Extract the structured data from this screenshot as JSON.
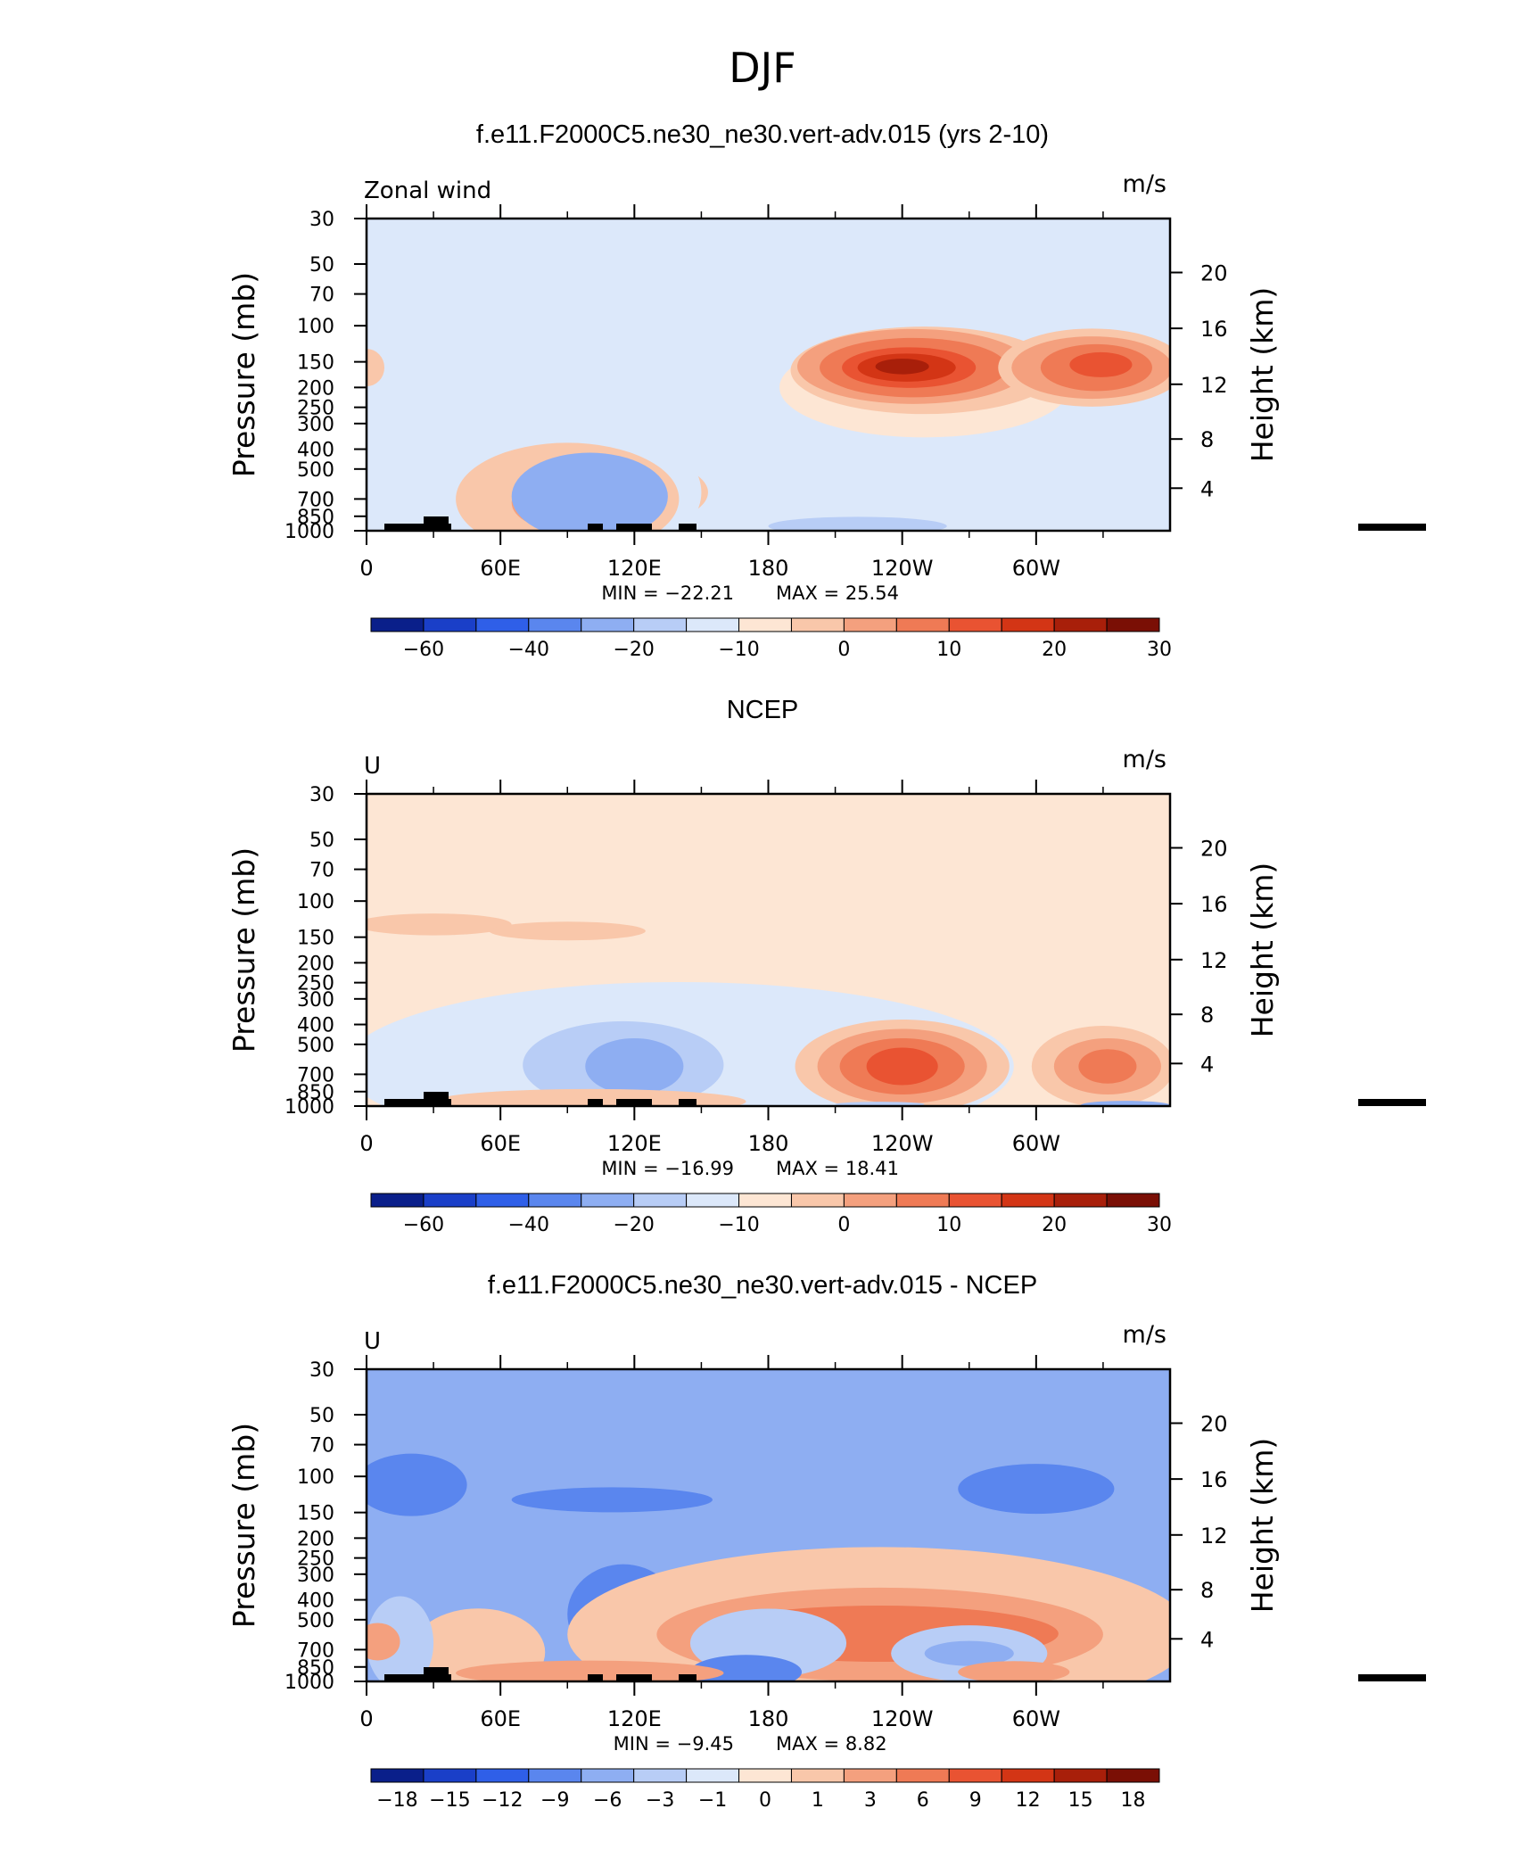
{
  "figure_title": "DJF",
  "chart_data": [
    {
      "type": "contour",
      "title": "f.e11.F2000C5.ne30_ne30.vert-adv.015 (yrs 2-10)",
      "left_label": "Zonal wind",
      "units": "m/s",
      "ylabel": "Pressure (mb)",
      "ylabel_right": "Height (km)",
      "x_ticks": [
        "0",
        "60E",
        "120E",
        "180",
        "120W",
        "60W"
      ],
      "y_ticks": [
        "30",
        "50",
        "70",
        "100",
        "150",
        "200",
        "250",
        "300",
        "400",
        "500",
        "700",
        "850",
        "1000"
      ],
      "y_ticks_right": [
        "20",
        "16",
        "12",
        "8",
        "4"
      ],
      "min": "-22.21",
      "max": "25.54",
      "min_text": "MIN = −22.21",
      "max_text": "MAX = 25.54",
      "colorbar_labels": [
        "−60",
        "−40",
        "−20",
        "−10",
        "0",
        "10",
        "20",
        "30"
      ],
      "colors": [
        "#0a1f8a",
        "#1a3fc8",
        "#2f5fe8",
        "#5a86ee",
        "#8eaef2",
        "#b8cdf6",
        "#dce8fa",
        "#fde6d4",
        "#f9c7aa",
        "#f4a07e",
        "#ef7a55",
        "#e95332",
        "#d33515",
        "#a81f0a",
        "#7a0f05"
      ],
      "features": [
        {
          "lon": 180,
          "p": 800,
          "rx": 180,
          "ry": 260,
          "level": 6
        },
        {
          "lon": 108,
          "p": 650,
          "rx": 45,
          "ry": 120,
          "level": 8
        },
        {
          "lon": 113,
          "p": 790,
          "rx": 14,
          "ry": 20,
          "level": 9
        },
        {
          "lon": 100,
          "p": 790,
          "rx": 6,
          "ry": 12,
          "level": 9
        },
        {
          "lon": 250,
          "p": 200,
          "rx": 65,
          "ry": 160,
          "level": 7
        },
        {
          "lon": 250,
          "p": 165,
          "rx": 60,
          "ry": 140,
          "level": 8
        },
        {
          "lon": 245,
          "p": 158,
          "rx": 52,
          "ry": 120,
          "level": 9
        },
        {
          "lon": 245,
          "p": 160,
          "rx": 42,
          "ry": 95,
          "level": 10
        },
        {
          "lon": 243,
          "p": 160,
          "rx": 30,
          "ry": 65,
          "level": 11
        },
        {
          "lon": 242,
          "p": 160,
          "rx": 22,
          "ry": 45,
          "level": 12
        },
        {
          "lon": 240,
          "p": 158,
          "rx": 12,
          "ry": 25,
          "level": 13
        },
        {
          "lon": 325,
          "p": 160,
          "rx": 42,
          "ry": 125,
          "level": 8
        },
        {
          "lon": 325,
          "p": 160,
          "rx": 36,
          "ry": 100,
          "level": 9
        },
        {
          "lon": 327,
          "p": 160,
          "rx": 25,
          "ry": 75,
          "level": 10
        },
        {
          "lon": 329,
          "p": 155,
          "rx": 14,
          "ry": 40,
          "level": 11
        },
        {
          "lon": 0,
          "p": 160,
          "rx": 8,
          "ry": 60,
          "level": 8
        },
        {
          "lon": 95,
          "p": 650,
          "rx": 55,
          "ry": 230,
          "level": 6
        },
        {
          "lon": 90,
          "p": 700,
          "rx": 50,
          "ry": 180,
          "level": 8
        },
        {
          "lon": 90,
          "p": 730,
          "rx": 25,
          "ry": 90,
          "level": 9
        },
        {
          "lon": 220,
          "p": 950,
          "rx": 40,
          "ry": 30,
          "level": 5
        },
        {
          "lon": 100,
          "p": 680,
          "rx": 35,
          "ry": 140,
          "level": 4
        }
      ]
    },
    {
      "type": "contour",
      "title": "NCEP",
      "left_label": "U",
      "units": "m/s",
      "ylabel": "Pressure (mb)",
      "ylabel_right": "Height (km)",
      "x_ticks": [
        "0",
        "60E",
        "120E",
        "180",
        "120W",
        "60W"
      ],
      "y_ticks": [
        "30",
        "50",
        "70",
        "100",
        "150",
        "200",
        "250",
        "300",
        "400",
        "500",
        "700",
        "850",
        "1000"
      ],
      "y_ticks_right": [
        "20",
        "16",
        "12",
        "8",
        "4"
      ],
      "min": "-16.99",
      "max": "18.41",
      "min_text": "MIN = −16.99",
      "max_text": "MAX = 18.41",
      "colorbar_labels": [
        "−60",
        "−40",
        "−20",
        "−10",
        "0",
        "10",
        "20",
        "30"
      ],
      "colors": [
        "#0a1f8a",
        "#1a3fc8",
        "#2f5fe8",
        "#5a86ee",
        "#8eaef2",
        "#b8cdf6",
        "#dce8fa",
        "#fde6d4",
        "#f9c7aa",
        "#f4a07e",
        "#ef7a55",
        "#e95332",
        "#d33515",
        "#a81f0a",
        "#7a0f05"
      ],
      "features": [
        {
          "lon": 140,
          "p": 640,
          "rx": 150,
          "ry": 270,
          "level": 6
        },
        {
          "lon": 115,
          "p": 630,
          "rx": 45,
          "ry": 140,
          "level": 5
        },
        {
          "lon": 120,
          "p": 640,
          "rx": 22,
          "ry": 90,
          "level": 4
        },
        {
          "lon": 30,
          "p": 130,
          "rx": 35,
          "ry": 35,
          "level": 8
        },
        {
          "lon": 90,
          "p": 140,
          "rx": 35,
          "ry": 30,
          "level": 8
        },
        {
          "lon": 240,
          "p": 640,
          "rx": 48,
          "ry": 150,
          "level": 8
        },
        {
          "lon": 240,
          "p": 640,
          "rx": 38,
          "ry": 120,
          "level": 9
        },
        {
          "lon": 240,
          "p": 640,
          "rx": 28,
          "ry": 90,
          "level": 10
        },
        {
          "lon": 240,
          "p": 640,
          "rx": 16,
          "ry": 60,
          "level": 11
        },
        {
          "lon": 330,
          "p": 640,
          "rx": 32,
          "ry": 130,
          "level": 8
        },
        {
          "lon": 332,
          "p": 640,
          "rx": 24,
          "ry": 90,
          "level": 9
        },
        {
          "lon": 332,
          "p": 640,
          "rx": 13,
          "ry": 55,
          "level": 10
        },
        {
          "lon": 100,
          "p": 950,
          "rx": 70,
          "ry": 40,
          "level": 8
        },
        {
          "lon": 340,
          "p": 990,
          "rx": 20,
          "ry": 14,
          "level": 4
        },
        {
          "lon": 230,
          "p": 980,
          "rx": 20,
          "ry": 8,
          "level": 5
        }
      ]
    },
    {
      "type": "contour",
      "title": "f.e11.F2000C5.ne30_ne30.vert-adv.015 - NCEP",
      "left_label": "U",
      "units": "m/s",
      "ylabel": "Pressure (mb)",
      "ylabel_right": "Height (km)",
      "x_ticks": [
        "0",
        "60E",
        "120E",
        "180",
        "120W",
        "60W"
      ],
      "y_ticks": [
        "30",
        "50",
        "70",
        "100",
        "150",
        "200",
        "250",
        "300",
        "400",
        "500",
        "700",
        "850",
        "1000"
      ],
      "y_ticks_right": [
        "20",
        "16",
        "12",
        "8",
        "4"
      ],
      "min": "-9.45",
      "max": "8.82",
      "min_text": "MIN = −9.45",
      "max_text": "MAX = 8.82",
      "colorbar_labels": [
        "−18",
        "−15",
        "−12",
        "−9",
        "−6",
        "−3",
        "−1",
        "0",
        "1",
        "3",
        "6",
        "9",
        "12",
        "15",
        "18"
      ],
      "colors": [
        "#0a1f8a",
        "#1a3fc8",
        "#2f5fe8",
        "#5a86ee",
        "#8eaef2",
        "#b8cdf6",
        "#dce8fa",
        "#fde6d4",
        "#f9c7aa",
        "#f4a07e",
        "#ef7a55",
        "#e95332",
        "#d33515",
        "#a81f0a",
        "#7a0f05"
      ],
      "features": [
        {
          "lon": 180,
          "p": 120,
          "rx": 180,
          "ry": 130,
          "level": 4
        },
        {
          "lon": 20,
          "p": 110,
          "rx": 25,
          "ry": 100,
          "level": 3
        },
        {
          "lon": 110,
          "p": 130,
          "rx": 45,
          "ry": 40,
          "level": 3
        },
        {
          "lon": 300,
          "p": 115,
          "rx": 35,
          "ry": 80,
          "level": 3
        },
        {
          "lon": 120,
          "p": 520,
          "rx": 55,
          "ry": 260,
          "level": 4
        },
        {
          "lon": 115,
          "p": 470,
          "rx": 25,
          "ry": 160,
          "level": 3
        },
        {
          "lon": 230,
          "p": 590,
          "rx": 140,
          "ry": 280,
          "level": 8
        },
        {
          "lon": 230,
          "p": 590,
          "rx": 100,
          "ry": 150,
          "level": 9
        },
        {
          "lon": 230,
          "p": 585,
          "rx": 80,
          "ry": 90,
          "level": 10
        },
        {
          "lon": 180,
          "p": 650,
          "rx": 35,
          "ry": 110,
          "level": 5
        },
        {
          "lon": 170,
          "p": 900,
          "rx": 25,
          "ry": 55,
          "level": 3
        },
        {
          "lon": 270,
          "p": 730,
          "rx": 35,
          "ry": 90,
          "level": 5
        },
        {
          "lon": 270,
          "p": 730,
          "rx": 20,
          "ry": 40,
          "level": 4
        },
        {
          "lon": 50,
          "p": 720,
          "rx": 30,
          "ry": 140,
          "level": 8
        },
        {
          "lon": 100,
          "p": 910,
          "rx": 60,
          "ry": 40,
          "level": 9
        },
        {
          "lon": 15,
          "p": 650,
          "rx": 15,
          "ry": 150,
          "level": 5
        },
        {
          "lon": 290,
          "p": 900,
          "rx": 25,
          "ry": 35,
          "level": 9
        },
        {
          "lon": 5,
          "p": 640,
          "rx": 10,
          "ry": 60,
          "level": 9
        }
      ]
    }
  ]
}
